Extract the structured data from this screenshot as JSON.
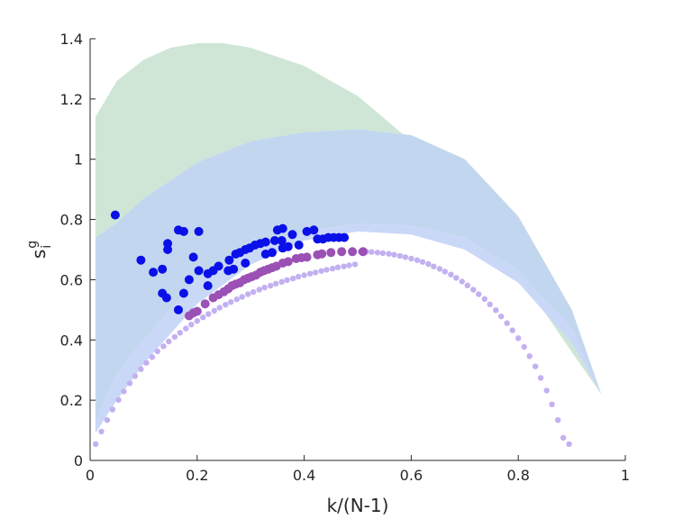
{
  "chart_data": {
    "type": "scatter",
    "title": "",
    "xlabel": "k/(N-1)",
    "ylabel": {
      "base": "s",
      "sup": "g",
      "sub": "i"
    },
    "xlim": [
      0,
      1
    ],
    "ylim": [
      0,
      1.4
    ],
    "xticks": [
      0,
      0.2,
      0.4,
      0.6,
      0.8,
      1
    ],
    "xtick_labels": [
      "0",
      "0.2",
      "0.4",
      "0.6",
      "0.8",
      "1"
    ],
    "yticks": [
      0,
      0.2,
      0.4,
      0.6,
      0.8,
      1,
      1.2,
      1.4
    ],
    "ytick_labels": [
      "0",
      "0.2",
      "0.4",
      "0.6",
      "0.8",
      "1",
      "1.2",
      "1.4"
    ],
    "grid": false,
    "legend": false,
    "bands": [
      {
        "color": "#cfe6d6",
        "upper": [
          [
            0.01,
            1.14
          ],
          [
            0.05,
            1.26
          ],
          [
            0.1,
            1.33
          ],
          [
            0.15,
            1.37
          ],
          [
            0.2,
            1.385
          ],
          [
            0.25,
            1.385
          ],
          [
            0.3,
            1.37
          ],
          [
            0.4,
            1.31
          ],
          [
            0.5,
            1.21
          ],
          [
            0.6,
            1.06
          ],
          [
            0.7,
            0.86
          ],
          [
            0.8,
            0.62
          ],
          [
            0.9,
            0.36
          ],
          [
            0.955,
            0.22
          ]
        ],
        "lower": [
          [
            0.955,
            0.22
          ],
          [
            0.9,
            0.5
          ],
          [
            0.8,
            0.81
          ],
          [
            0.7,
            1.0
          ],
          [
            0.6,
            1.08
          ],
          [
            0.5,
            1.1
          ],
          [
            0.4,
            1.09
          ],
          [
            0.3,
            1.06
          ],
          [
            0.2,
            0.99
          ],
          [
            0.1,
            0.87
          ],
          [
            0.05,
            0.79
          ],
          [
            0.01,
            0.74
          ]
        ]
      },
      {
        "color": "#c2d7ef",
        "upper": [
          [
            0.01,
            0.74
          ],
          [
            0.05,
            0.79
          ],
          [
            0.1,
            0.87
          ],
          [
            0.2,
            0.99
          ],
          [
            0.3,
            1.06
          ],
          [
            0.4,
            1.09
          ],
          [
            0.5,
            1.1
          ],
          [
            0.6,
            1.08
          ],
          [
            0.7,
            1.0
          ],
          [
            0.8,
            0.81
          ],
          [
            0.9,
            0.5
          ],
          [
            0.955,
            0.22
          ]
        ],
        "lower": [
          [
            0.955,
            0.22
          ],
          [
            0.9,
            0.44
          ],
          [
            0.8,
            0.63
          ],
          [
            0.7,
            0.74
          ],
          [
            0.6,
            0.78
          ],
          [
            0.5,
            0.785
          ],
          [
            0.4,
            0.76
          ],
          [
            0.3,
            0.71
          ],
          [
            0.2,
            0.6
          ],
          [
            0.1,
            0.4
          ],
          [
            0.05,
            0.29
          ],
          [
            0.01,
            0.13
          ]
        ]
      },
      {
        "color": "#cad8f8",
        "upper": [
          [
            0.01,
            0.13
          ],
          [
            0.05,
            0.29
          ],
          [
            0.1,
            0.4
          ],
          [
            0.2,
            0.6
          ],
          [
            0.3,
            0.71
          ],
          [
            0.4,
            0.76
          ],
          [
            0.5,
            0.785
          ],
          [
            0.6,
            0.78
          ],
          [
            0.7,
            0.74
          ],
          [
            0.8,
            0.63
          ],
          [
            0.9,
            0.44
          ],
          [
            0.955,
            0.22
          ]
        ],
        "lower": [
          [
            0.955,
            0.22
          ],
          [
            0.9,
            0.39
          ],
          [
            0.8,
            0.59
          ],
          [
            0.7,
            0.7
          ],
          [
            0.6,
            0.75
          ],
          [
            0.5,
            0.76
          ],
          [
            0.4,
            0.73
          ],
          [
            0.3,
            0.65
          ],
          [
            0.2,
            0.52
          ],
          [
            0.1,
            0.32
          ],
          [
            0.05,
            0.2
          ],
          [
            0.01,
            0.09
          ]
        ]
      }
    ],
    "series": [
      {
        "color": "#c3b0f0",
        "values": [
          [
            0.0105,
            0.054
          ],
          [
            0.021,
            0.096
          ],
          [
            0.032,
            0.134
          ],
          [
            0.042,
            0.169
          ],
          [
            0.053,
            0.201
          ],
          [
            0.063,
            0.229
          ],
          [
            0.074,
            0.256
          ],
          [
            0.084,
            0.28
          ],
          [
            0.095,
            0.303
          ],
          [
            0.105,
            0.324
          ],
          [
            0.116,
            0.343
          ],
          [
            0.126,
            0.362
          ],
          [
            0.137,
            0.379
          ],
          [
            0.147,
            0.395
          ],
          [
            0.158,
            0.41
          ],
          [
            0.168,
            0.424
          ],
          [
            0.179,
            0.438
          ],
          [
            0.189,
            0.451
          ],
          [
            0.2,
            0.463
          ],
          [
            0.211,
            0.475
          ],
          [
            0.221,
            0.486
          ],
          [
            0.232,
            0.497
          ],
          [
            0.242,
            0.507
          ],
          [
            0.253,
            0.517
          ],
          [
            0.263,
            0.526
          ],
          [
            0.274,
            0.535
          ],
          [
            0.284,
            0.543
          ],
          [
            0.295,
            0.552
          ],
          [
            0.305,
            0.559
          ],
          [
            0.316,
            0.567
          ],
          [
            0.326,
            0.574
          ],
          [
            0.337,
            0.58
          ],
          [
            0.347,
            0.587
          ],
          [
            0.358,
            0.593
          ],
          [
            0.368,
            0.599
          ],
          [
            0.379,
            0.604
          ],
          [
            0.389,
            0.61
          ],
          [
            0.4,
            0.615
          ],
          [
            0.411,
            0.62
          ],
          [
            0.421,
            0.624
          ],
          [
            0.432,
            0.629
          ],
          [
            0.442,
            0.633
          ],
          [
            0.453,
            0.637
          ],
          [
            0.463,
            0.641
          ],
          [
            0.474,
            0.644
          ],
          [
            0.484,
            0.648
          ],
          [
            0.495,
            0.651
          ],
          [
            0.505,
            0.693
          ],
          [
            0.516,
            0.693
          ],
          [
            0.526,
            0.692
          ],
          [
            0.537,
            0.69
          ],
          [
            0.547,
            0.688
          ],
          [
            0.558,
            0.686
          ],
          [
            0.568,
            0.683
          ],
          [
            0.579,
            0.679
          ],
          [
            0.589,
            0.675
          ],
          [
            0.6,
            0.67
          ],
          [
            0.611,
            0.665
          ],
          [
            0.621,
            0.659
          ],
          [
            0.632,
            0.652
          ],
          [
            0.642,
            0.644
          ],
          [
            0.653,
            0.636
          ],
          [
            0.663,
            0.627
          ],
          [
            0.674,
            0.617
          ],
          [
            0.684,
            0.606
          ],
          [
            0.695,
            0.594
          ],
          [
            0.705,
            0.581
          ],
          [
            0.716,
            0.567
          ],
          [
            0.726,
            0.552
          ],
          [
            0.737,
            0.536
          ],
          [
            0.747,
            0.518
          ],
          [
            0.758,
            0.499
          ],
          [
            0.768,
            0.478
          ],
          [
            0.779,
            0.456
          ],
          [
            0.789,
            0.432
          ],
          [
            0.8,
            0.406
          ],
          [
            0.811,
            0.377
          ],
          [
            0.821,
            0.346
          ],
          [
            0.832,
            0.312
          ],
          [
            0.842,
            0.274
          ],
          [
            0.853,
            0.232
          ],
          [
            0.863,
            0.186
          ],
          [
            0.874,
            0.134
          ],
          [
            0.884,
            0.075
          ],
          [
            0.895,
            0.054
          ]
        ]
      },
      {
        "color": "#9b50b5",
        "values": [
          [
            0.185,
            0.48
          ],
          [
            0.193,
            0.49
          ],
          [
            0.2,
            0.495
          ],
          [
            0.215,
            0.52
          ],
          [
            0.23,
            0.54
          ],
          [
            0.24,
            0.55
          ],
          [
            0.25,
            0.56
          ],
          [
            0.258,
            0.57
          ],
          [
            0.265,
            0.58
          ],
          [
            0.272,
            0.585
          ],
          [
            0.28,
            0.59
          ],
          [
            0.288,
            0.6
          ],
          [
            0.295,
            0.605
          ],
          [
            0.302,
            0.61
          ],
          [
            0.31,
            0.615
          ],
          [
            0.318,
            0.625
          ],
          [
            0.325,
            0.63
          ],
          [
            0.333,
            0.635
          ],
          [
            0.34,
            0.64
          ],
          [
            0.348,
            0.645
          ],
          [
            0.36,
            0.655
          ],
          [
            0.37,
            0.66
          ],
          [
            0.385,
            0.67
          ],
          [
            0.395,
            0.673
          ],
          [
            0.405,
            0.675
          ],
          [
            0.425,
            0.683
          ],
          [
            0.433,
            0.686
          ],
          [
            0.45,
            0.69
          ],
          [
            0.47,
            0.693
          ],
          [
            0.49,
            0.693
          ],
          [
            0.51,
            0.693
          ]
        ]
      },
      {
        "color": "#0a10e8",
        "values": [
          [
            0.047,
            0.815
          ],
          [
            0.095,
            0.665
          ],
          [
            0.118,
            0.625
          ],
          [
            0.135,
            0.635
          ],
          [
            0.135,
            0.555
          ],
          [
            0.143,
            0.54
          ],
          [
            0.145,
            0.72
          ],
          [
            0.145,
            0.7
          ],
          [
            0.165,
            0.5
          ],
          [
            0.165,
            0.765
          ],
          [
            0.175,
            0.76
          ],
          [
            0.175,
            0.555
          ],
          [
            0.185,
            0.6
          ],
          [
            0.193,
            0.675
          ],
          [
            0.203,
            0.63
          ],
          [
            0.203,
            0.76
          ],
          [
            0.22,
            0.62
          ],
          [
            0.22,
            0.58
          ],
          [
            0.23,
            0.63
          ],
          [
            0.24,
            0.645
          ],
          [
            0.258,
            0.63
          ],
          [
            0.26,
            0.665
          ],
          [
            0.268,
            0.635
          ],
          [
            0.272,
            0.685
          ],
          [
            0.28,
            0.69
          ],
          [
            0.29,
            0.655
          ],
          [
            0.29,
            0.7
          ],
          [
            0.298,
            0.705
          ],
          [
            0.308,
            0.715
          ],
          [
            0.318,
            0.72
          ],
          [
            0.328,
            0.725
          ],
          [
            0.328,
            0.685
          ],
          [
            0.34,
            0.69
          ],
          [
            0.345,
            0.73
          ],
          [
            0.35,
            0.765
          ],
          [
            0.358,
            0.73
          ],
          [
            0.36,
            0.77
          ],
          [
            0.36,
            0.705
          ],
          [
            0.37,
            0.71
          ],
          [
            0.378,
            0.75
          ],
          [
            0.39,
            0.715
          ],
          [
            0.405,
            0.76
          ],
          [
            0.418,
            0.765
          ],
          [
            0.425,
            0.735
          ],
          [
            0.435,
            0.735
          ],
          [
            0.445,
            0.74
          ],
          [
            0.455,
            0.74
          ],
          [
            0.465,
            0.74
          ],
          [
            0.475,
            0.74
          ]
        ]
      }
    ]
  }
}
